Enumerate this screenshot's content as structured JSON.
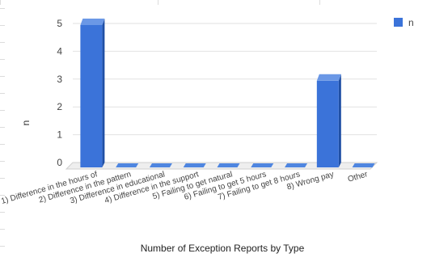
{
  "chart_data": {
    "type": "bar",
    "title": "",
    "xlabel": "Number of Exception Reports by Type",
    "ylabel": "n",
    "ylim": [
      0,
      5
    ],
    "yticks": [
      0,
      1,
      2,
      3,
      4,
      5
    ],
    "grid": true,
    "style": "3d",
    "legend_position": "top-right",
    "categories": [
      "1) Difference in the hours of",
      "2) Difference in the pattern",
      "3) Difference in educational",
      "4) Difference in the support",
      "5) Failing to get natural",
      "6) Failing to get 5 hours",
      "7) Failing to get 8 hours",
      "8) Wrong pay",
      "Other"
    ],
    "series": [
      {
        "name": "n",
        "values": [
          5,
          0,
          0,
          0,
          0,
          0,
          0,
          3,
          0
        ],
        "color": "#3b73d9"
      }
    ]
  }
}
